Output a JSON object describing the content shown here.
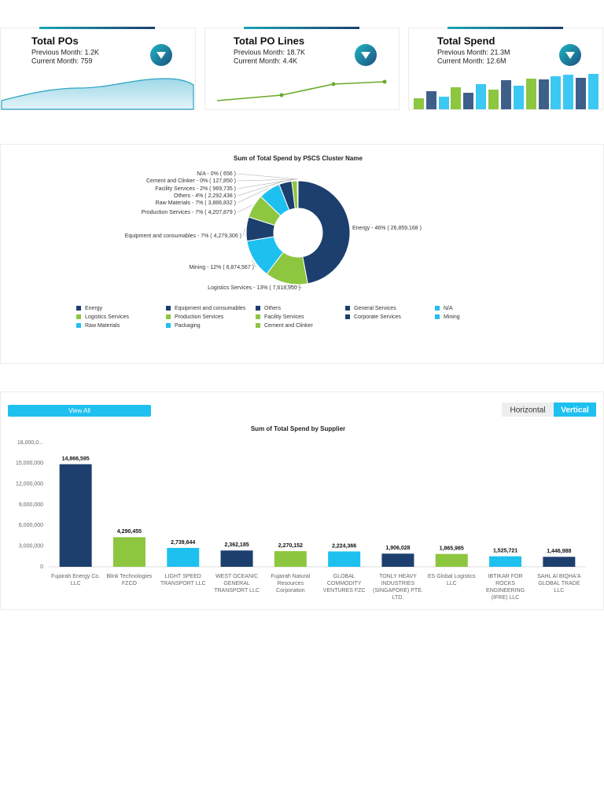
{
  "cards": [
    {
      "title": "Total POs",
      "previous": "Previous Month: 1.2K",
      "current": "Current Month: 759"
    },
    {
      "title": "Total PO Lines",
      "previous": "Previous Month: 18.7K",
      "current": "Current Month: 4.4K"
    },
    {
      "title": "Total Spend",
      "previous": "Previous Month: 21.3M",
      "current": "Current Month: 12.6M"
    }
  ],
  "buttons": {
    "view_all": "View All",
    "horizontal": "Horizontal",
    "vertical": "Vertical"
  },
  "chart_data": [
    {
      "type": "pie",
      "title": "Sum of Total Spend by PSCS Cluster Name",
      "categories": [
        "Energy",
        "Logistics Services",
        "Mining",
        "Equipment and consumables",
        "Production Services",
        "Raw Materials",
        "Others",
        "Facility Services",
        "Cement and Clinker",
        "N/A"
      ],
      "values": [
        26859168,
        7618950,
        6874567,
        4279306,
        4207879,
        3886832,
        2292438,
        969735,
        127850,
        656
      ],
      "value_labels": [
        "Energy - 46% ( 26,859,168 )",
        "Logistics Services - 13% ( 7,618,950 )",
        "Mining - 12% ( 6,874,567 )",
        "Equipment and consumables - 7% ( 4,279,306 )",
        "Production Services - 7% ( 4,207,879 )",
        "Raw Materials - 7% ( 3,886,832 )",
        "Others - 4% ( 2,292,438 )",
        "Facility Services - 2% ( 969,735 )",
        "Cement and Clinker - 0% ( 127,850 )",
        "N/A - 0% ( 656 )"
      ],
      "colors": [
        "#1d3f6e",
        "#8dc63f",
        "#1ec0f0",
        "#1d3f6e",
        "#8dc63f",
        "#1ec0f0",
        "#1d3f6e",
        "#8dc63f",
        "#8dc63f",
        "#1ec0f0"
      ],
      "legend": [
        {
          "name": "Energy",
          "color": "#1d3f6e"
        },
        {
          "name": "Equipment and consumables",
          "color": "#1d3f6e"
        },
        {
          "name": "Others",
          "color": "#1d3f6e"
        },
        {
          "name": "General Services",
          "color": "#1d3f6e"
        },
        {
          "name": "N/A",
          "color": "#1ec0f0"
        },
        {
          "name": "Logistics Services",
          "color": "#8dc63f"
        },
        {
          "name": "Production Services",
          "color": "#8dc63f"
        },
        {
          "name": "Facility Services",
          "color": "#8dc63f"
        },
        {
          "name": "Corporate Services",
          "color": "#1d3f6e"
        },
        {
          "name": "Mining",
          "color": "#1ec0f0"
        },
        {
          "name": "Raw Materials",
          "color": "#1ec0f0"
        },
        {
          "name": "Packaging",
          "color": "#1ec0f0"
        },
        {
          "name": "Cement and Clinker",
          "color": "#8dc63f"
        }
      ]
    },
    {
      "type": "bar",
      "title": "Sum of Total Spend by Supplier",
      "categories": [
        "Fujairah Energy Co. LLC",
        "Blink Technologies FZCO",
        "LIGHT SPEED TRANSPORT LLC",
        "WEST OCEANIC GENERAL TRANSPORT LLC",
        "Fujairah Natural Resources Corporation",
        "GLOBAL COMMODITY VENTURES FZC",
        "TONLY HEAVY INDUSTRIES (SINGAPORE) PTE. LTD.",
        "ES Global Logistics LLC",
        "IBTIKAR FOR ROCKS ENGINEERING (IFRE) LLC",
        "SAHL Al BIQHA'A GLOBAL TRADE LLC"
      ],
      "values": [
        14866595,
        4290455,
        2739644,
        2362185,
        2270152,
        2224366,
        1906028,
        1865985,
        1525721,
        1446988
      ],
      "value_labels": [
        "14,866,595",
        "4,290,455",
        "2,739,644",
        "2,362,185",
        "2,270,152",
        "2,224,366",
        "1,906,028",
        "1,865,985",
        "1,525,721",
        "1,446,988"
      ],
      "colors": [
        "#1d3f6e",
        "#8dc63f",
        "#1ec0f0",
        "#1d3f6e",
        "#8dc63f",
        "#1ec0f0",
        "#1d3f6e",
        "#8dc63f",
        "#1ec0f0",
        "#1d3f6e"
      ],
      "ylim": [
        0,
        18000000
      ],
      "yticks": [
        0,
        {
          "value": 3000000,
          "label": "3,000,000"
        },
        {
          "value": 6000000,
          "label": "6,000,000"
        },
        {
          "value": 9000000,
          "label": "9,000,000"
        },
        {
          "value": 12000000,
          "label": "12,000,000"
        },
        {
          "value": 15000000,
          "label": "15,000,000"
        },
        {
          "value": 18000000,
          "label": "18,000,0..."
        }
      ]
    }
  ]
}
